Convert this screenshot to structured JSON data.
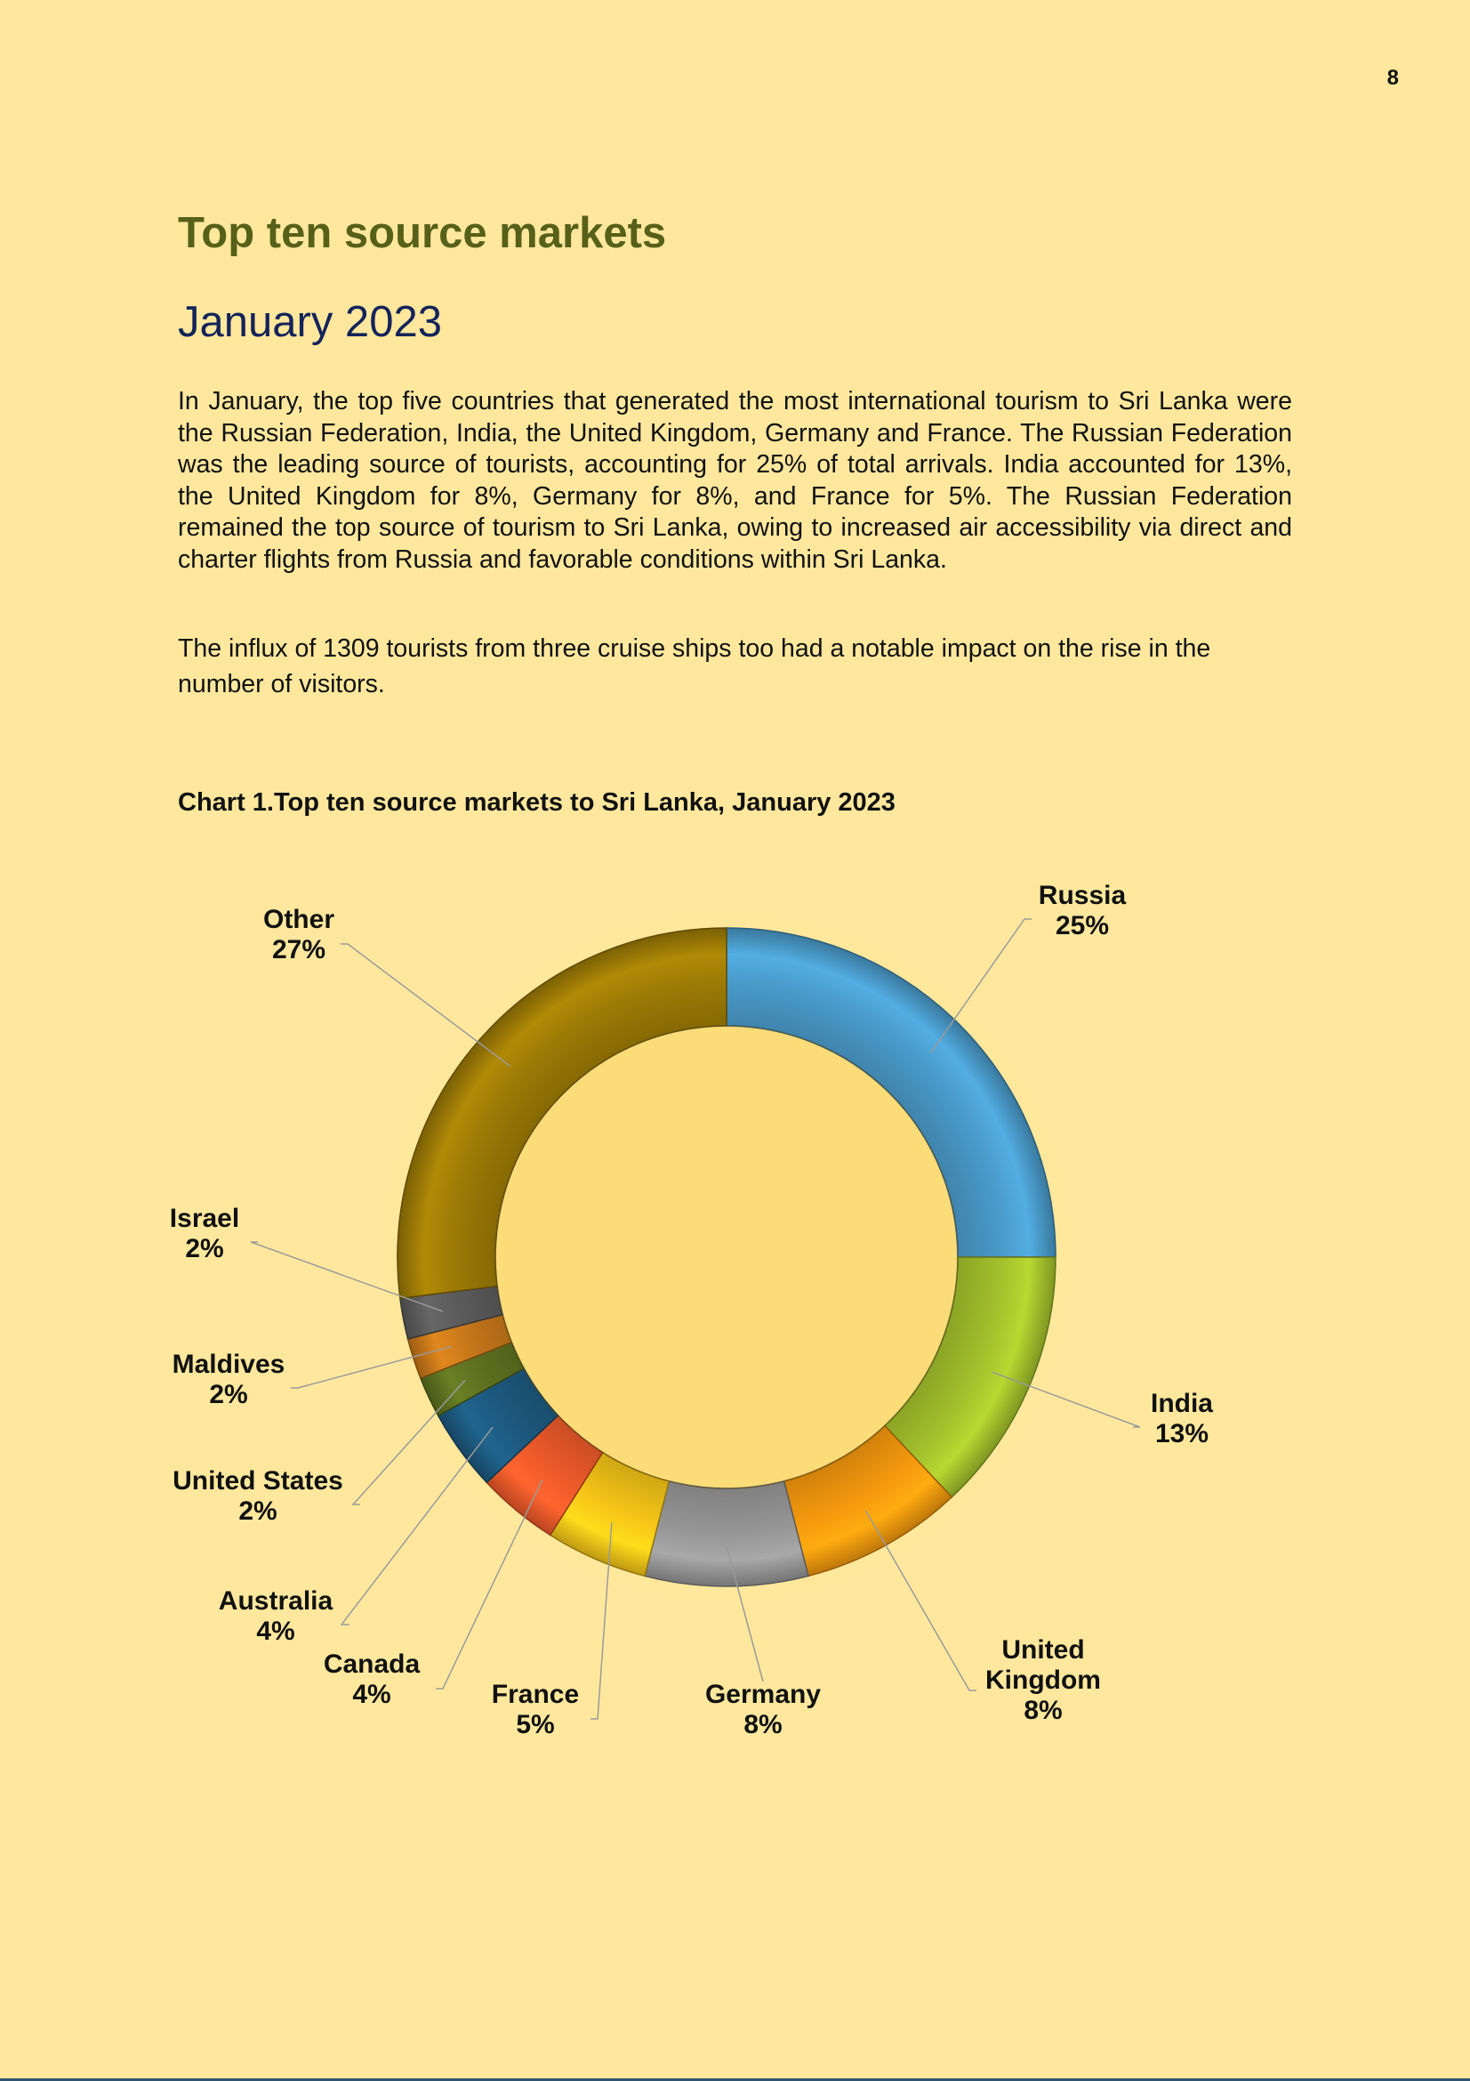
{
  "page_number": "8",
  "heading": "Top ten source markets",
  "subheading": "January 2023",
  "paragraphs": [
    "In January, the top five countries that generated the most international tourism to Sri Lanka were the Russian Federation, India, the United Kingdom, Germany and France. The Russian Federation was the leading source of tourists, accounting for 25% of total arrivals. India accounted for 13%, the United Kingdom for 8%, Germany for 8%, and France for 5%. The Russian Federation remained the top source of tourism to Sri Lanka, owing to increased air accessibility via direct and charter flights from Russia and favorable conditions within Sri Lanka.",
    "The influx of 1309 tourists from three cruise ships too had a notable impact on the rise in the number of visitors."
  ],
  "chart_caption": "Chart 1.Top ten source markets to Sri Lanka, January 2023",
  "chart_data": {
    "type": "pie",
    "variant": "donut",
    "title": "",
    "categories": [
      "Russia",
      "India",
      "United Kingdom",
      "Germany",
      "France",
      "Canada",
      "Australia",
      "United States",
      "Maldives",
      "Israel",
      "Other"
    ],
    "values": [
      25,
      13,
      8,
      8,
      5,
      4,
      4,
      2,
      2,
      2,
      27
    ],
    "data_labels": [
      {
        "name": [
          "Russia"
        ],
        "value": "25%"
      },
      {
        "name": [
          "India"
        ],
        "value": "13%"
      },
      {
        "name": [
          "United",
          "Kingdom"
        ],
        "value": "8%"
      },
      {
        "name": [
          "Germany"
        ],
        "value": "8%"
      },
      {
        "name": [
          "France"
        ],
        "value": "5%"
      },
      {
        "name": [
          "Canada"
        ],
        "value": "4%"
      },
      {
        "name": [
          "Australia"
        ],
        "value": "4%"
      },
      {
        "name": [
          "United States"
        ],
        "value": "2%"
      },
      {
        "name": [
          "Maldives"
        ],
        "value": "2%"
      },
      {
        "name": [
          "Israel"
        ],
        "value": "2%"
      },
      {
        "name": [
          "Other"
        ],
        "value": "27%"
      }
    ],
    "colors": [
      "#4A9BCB",
      "#A4C12C",
      "#F5990E",
      "#969696",
      "#F5C518",
      "#EE5A2A",
      "#1D5A80",
      "#5E7220",
      "#C9791A",
      "#5C5C5C",
      "#9E7B06"
    ],
    "legend": "none",
    "labels_outside": true
  }
}
